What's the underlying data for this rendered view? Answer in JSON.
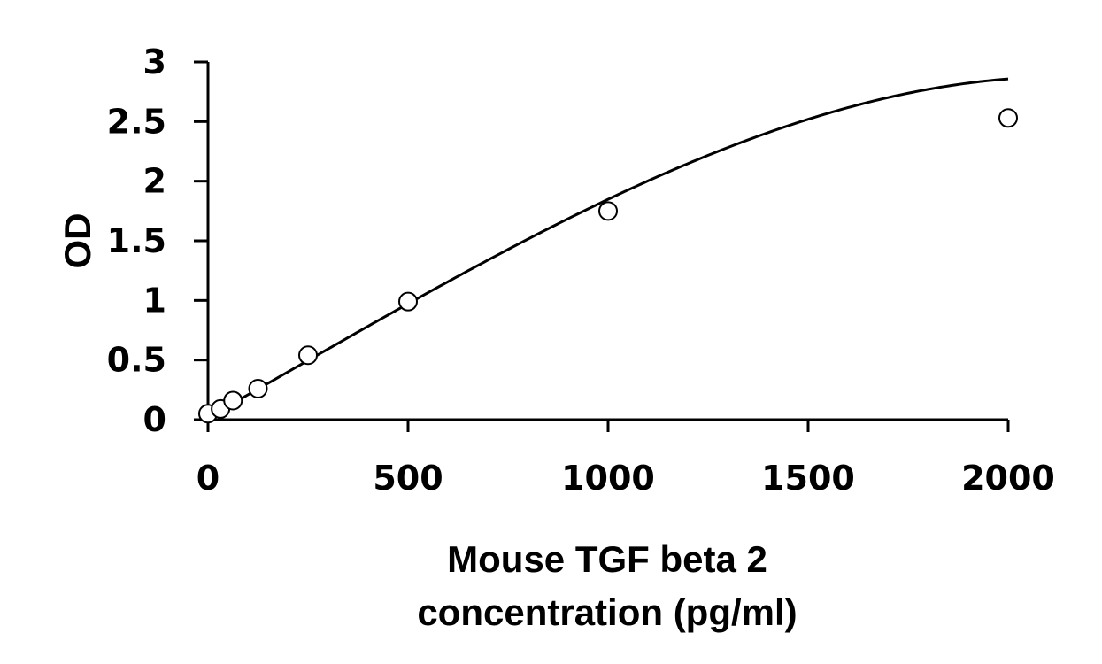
{
  "chart_data": {
    "type": "scatter",
    "xlabel_lines": [
      "Mouse TGF beta 2",
      "concentration (pg/ml)"
    ],
    "ylabel": "OD",
    "xlim": [
      0,
      2000
    ],
    "ylim": [
      0,
      3
    ],
    "x_ticks": [
      "0",
      "500",
      "1000",
      "1500",
      "2000"
    ],
    "y_ticks": [
      "0",
      "0.5",
      "1",
      "1.5",
      "2",
      "2.5",
      "3"
    ],
    "grid": false,
    "legend": "none",
    "series": [
      {
        "x": [
          0,
          31.25,
          62.5,
          125,
          250,
          500,
          1000,
          2000
        ],
        "y": [
          0.05,
          0.09,
          0.16,
          0.26,
          0.54,
          0.99,
          1.75,
          2.53
        ]
      }
    ],
    "trendline": {
      "type": "polynomial-3",
      "coefficients": [
        0.018,
        0.0019,
        1e-07,
        -1.7e-10
      ]
    }
  }
}
